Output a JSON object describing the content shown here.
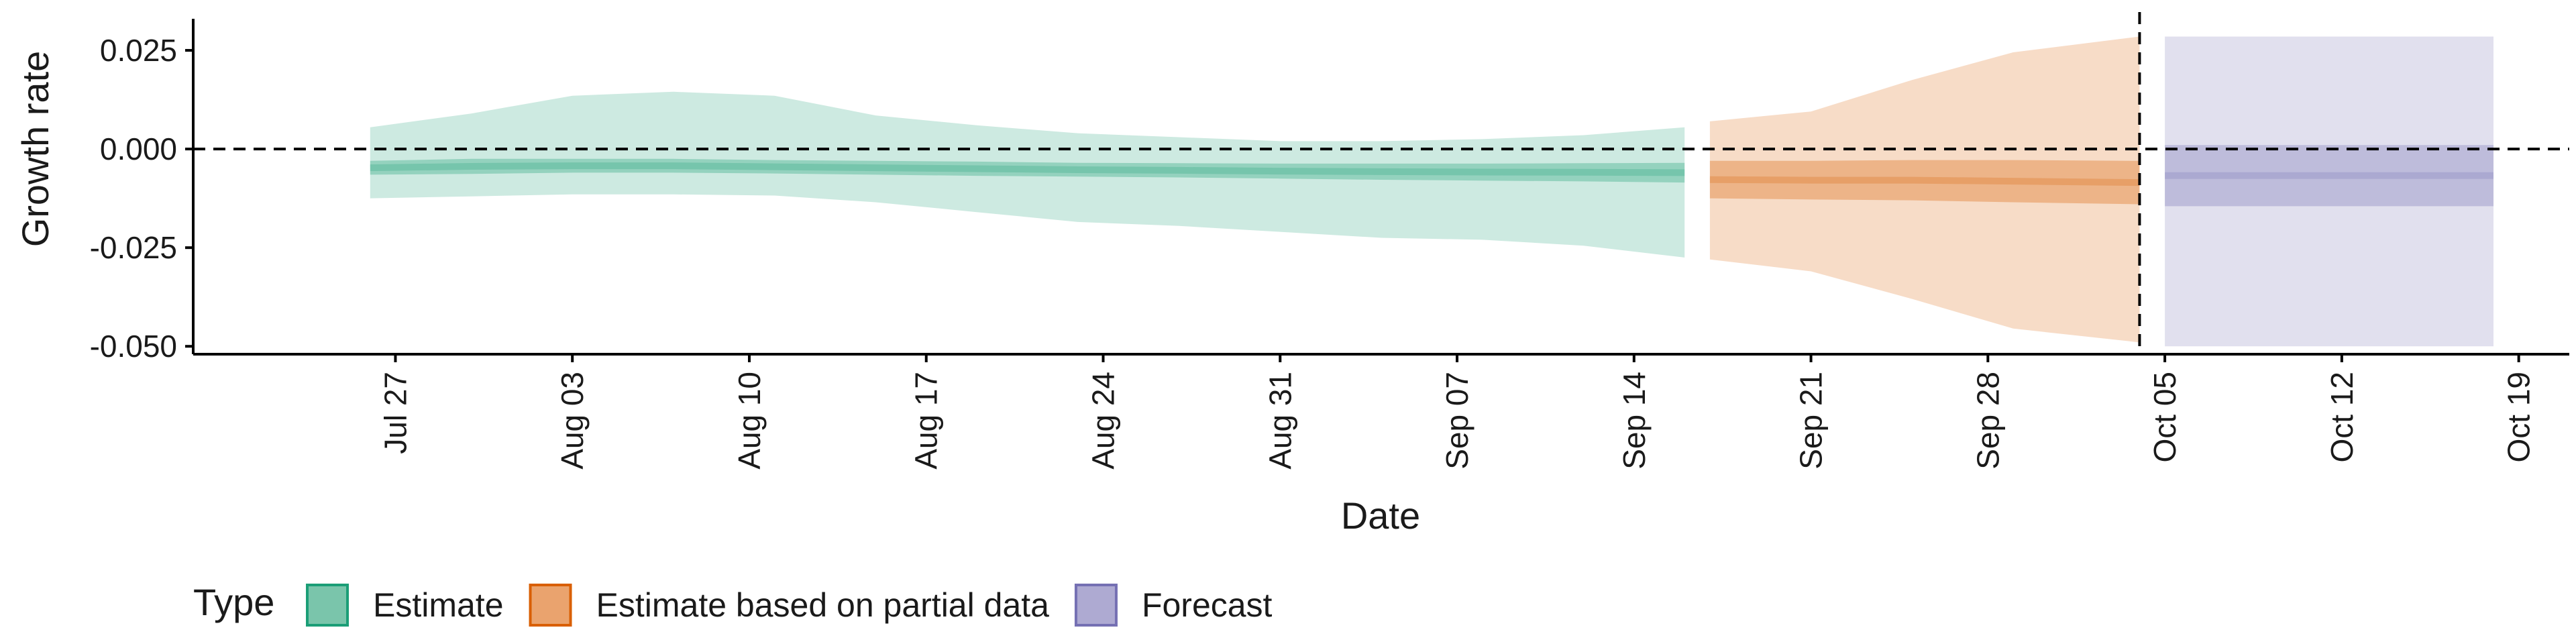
{
  "chart_data": {
    "type": "area",
    "xlabel": "Date",
    "ylabel": "Growth rate",
    "ylim": [
      -0.052,
      0.033
    ],
    "xlim": [
      "2021-07-19",
      "2021-10-21"
    ],
    "y_ticks": [
      {
        "value": 0.025,
        "label": "0.025"
      },
      {
        "value": 0.0,
        "label": "0.000"
      },
      {
        "value": -0.025,
        "label": "-0.025"
      },
      {
        "value": -0.05,
        "label": "-0.050"
      }
    ],
    "x_ticks": [
      {
        "date": "2021-07-27",
        "label": "Jul 27"
      },
      {
        "date": "2021-08-03",
        "label": "Aug 03"
      },
      {
        "date": "2021-08-10",
        "label": "Aug 10"
      },
      {
        "date": "2021-08-17",
        "label": "Aug 17"
      },
      {
        "date": "2021-08-24",
        "label": "Aug 24"
      },
      {
        "date": "2021-08-31",
        "label": "Aug 31"
      },
      {
        "date": "2021-09-07",
        "label": "Sep 07"
      },
      {
        "date": "2021-09-14",
        "label": "Sep 14"
      },
      {
        "date": "2021-09-21",
        "label": "Sep 21"
      },
      {
        "date": "2021-09-28",
        "label": "Sep 28"
      },
      {
        "date": "2021-10-05",
        "label": "Oct 05"
      },
      {
        "date": "2021-10-12",
        "label": "Oct 12"
      },
      {
        "date": "2021-10-19",
        "label": "Oct 19"
      }
    ],
    "hline": {
      "y": 0.0,
      "style": "dashed"
    },
    "vline": {
      "date": "2021-10-04",
      "style": "dashed"
    },
    "legend": {
      "title": "Type",
      "placement": "bottom-left",
      "entries": [
        {
          "label": "Estimate",
          "fill": "#7ac5ab",
          "stroke": "#1b9e77"
        },
        {
          "label": "Estimate based on partial data",
          "fill": "#eaa36e",
          "stroke": "#d95f02"
        },
        {
          "label": "Forecast",
          "fill": "#aeaad2",
          "stroke": "#7570b3"
        }
      ]
    },
    "series": [
      {
        "name": "Estimate",
        "color": "#1b9e77",
        "points": [
          {
            "date": "2021-07-26",
            "lower90": -0.0125,
            "upper90": 0.0055,
            "lower50": -0.0065,
            "upper50": -0.003
          },
          {
            "date": "2021-07-30",
            "lower90": -0.012,
            "upper90": 0.009,
            "lower50": -0.0063,
            "upper50": -0.0025
          },
          {
            "date": "2021-08-03",
            "lower90": -0.0115,
            "upper90": 0.0135,
            "lower50": -0.006,
            "upper50": -0.0025
          },
          {
            "date": "2021-08-07",
            "lower90": -0.0115,
            "upper90": 0.0145,
            "lower50": -0.006,
            "upper50": -0.0025
          },
          {
            "date": "2021-08-11",
            "lower90": -0.0118,
            "upper90": 0.0135,
            "lower50": -0.0062,
            "upper50": -0.0028
          },
          {
            "date": "2021-08-15",
            "lower90": -0.0135,
            "upper90": 0.0085,
            "lower50": -0.0065,
            "upper50": -0.003
          },
          {
            "date": "2021-08-19",
            "lower90": -0.016,
            "upper90": 0.006,
            "lower50": -0.0068,
            "upper50": -0.0032
          },
          {
            "date": "2021-08-23",
            "lower90": -0.0185,
            "upper90": 0.004,
            "lower50": -0.007,
            "upper50": -0.0035
          },
          {
            "date": "2021-08-27",
            "lower90": -0.0195,
            "upper90": 0.003,
            "lower50": -0.0072,
            "upper50": -0.0036
          },
          {
            "date": "2021-08-31",
            "lower90": -0.021,
            "upper90": 0.002,
            "lower50": -0.0075,
            "upper50": -0.0037
          },
          {
            "date": "2021-09-04",
            "lower90": -0.0225,
            "upper90": 0.002,
            "lower50": -0.0078,
            "upper50": -0.0037
          },
          {
            "date": "2021-09-08",
            "lower90": -0.023,
            "upper90": 0.0025,
            "lower50": -0.008,
            "upper50": -0.0037
          },
          {
            "date": "2021-09-12",
            "lower90": -0.0245,
            "upper90": 0.0035,
            "lower50": -0.0082,
            "upper50": -0.0036
          },
          {
            "date": "2021-09-16",
            "lower90": -0.0275,
            "upper90": 0.0055,
            "lower50": -0.0085,
            "upper50": -0.0035
          }
        ]
      },
      {
        "name": "Estimate based on partial data",
        "color": "#d95f02",
        "points": [
          {
            "date": "2021-09-17",
            "lower90": -0.028,
            "upper90": 0.007,
            "lower50": -0.0125,
            "upper50": -0.003
          },
          {
            "date": "2021-09-21",
            "lower90": -0.031,
            "upper90": 0.0095,
            "lower50": -0.0128,
            "upper50": -0.003
          },
          {
            "date": "2021-09-25",
            "lower90": -0.038,
            "upper90": 0.0175,
            "lower50": -0.013,
            "upper50": -0.0028
          },
          {
            "date": "2021-09-29",
            "lower90": -0.0455,
            "upper90": 0.0245,
            "lower50": -0.0135,
            "upper50": -0.0028
          },
          {
            "date": "2021-10-04",
            "lower90": -0.049,
            "upper90": 0.0285,
            "lower50": -0.014,
            "upper50": -0.003
          }
        ]
      },
      {
        "name": "Forecast",
        "color": "#7570b3",
        "points": [
          {
            "date": "2021-10-05",
            "lower90": -0.05,
            "upper90": 0.0285,
            "lower50": -0.0145,
            "upper50": 0.001
          },
          {
            "date": "2021-10-18",
            "lower90": -0.05,
            "upper90": 0.0285,
            "lower50": -0.0145,
            "upper50": 0.001
          }
        ]
      }
    ]
  }
}
